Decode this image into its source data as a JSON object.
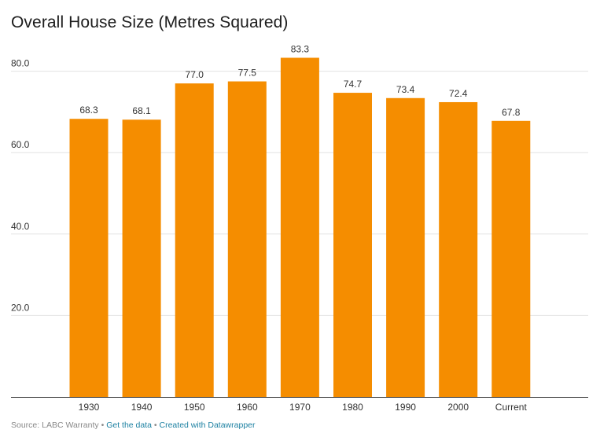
{
  "chart_data": {
    "type": "bar",
    "title": "Overall House Size (Metres Squared)",
    "xlabel": "",
    "ylabel": "",
    "categories": [
      "1930",
      "1940",
      "1950",
      "1960",
      "1970",
      "1980",
      "1990",
      "2000",
      "Current"
    ],
    "values": [
      68.3,
      68.1,
      77.0,
      77.5,
      83.3,
      74.7,
      73.4,
      72.4,
      67.8
    ],
    "value_labels": [
      "68.3",
      "68.1",
      "77.0",
      "77.5",
      "83.3",
      "74.7",
      "73.4",
      "72.4",
      "67.8"
    ],
    "ylim": [
      0,
      80
    ],
    "yticks": [
      20,
      40,
      60,
      80
    ],
    "ytick_labels": [
      "20.0",
      "40.0",
      "60.0",
      "80.0"
    ],
    "grid": true,
    "bar_color": "#f58d00"
  },
  "footer": {
    "source": "Source: LABC Warranty",
    "separator": "•",
    "get_data": "Get the data",
    "created_with": "Created with Datawrapper"
  },
  "colors": {
    "bar": "#f58d00",
    "link": "#1d81a2",
    "grid": "#e2e2e2",
    "axis": "#333333"
  }
}
